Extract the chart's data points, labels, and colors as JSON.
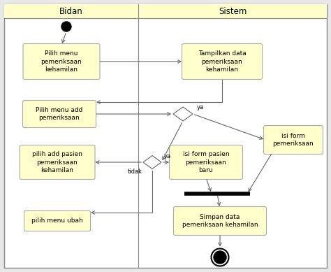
{
  "bg_color": "#f5f5f5",
  "header_bg": "#ffffcc",
  "box_bg": "#ffffcc",
  "box_edge": "#aaaaaa",
  "arrow_color": "#666666",
  "text_color": "#000000",
  "header_bidan": "Bidan",
  "header_sistem": "Sistem",
  "box1_text": "Pilih menu\npemeriksaan\nkehamilan",
  "box2_text": "Tampilkan data\npemeriksaan\nkehamilan",
  "box3_text": "Pilih menu add\npemeriksaan",
  "box4_text": "pilih add pasien\npemeriksaan\nkehamilan",
  "box5_text": "isi form pasien\npemeriksaan\nbaru",
  "box6_text": "isi form\npemeriksaan",
  "box7_text": "Simpan data\npemeriksaan kehamilan",
  "box8_text": "pilih menu ubah",
  "label_ya1": "ya",
  "label_ya2": "ya",
  "label_tidak": "tidak",
  "fontsize": 6.5,
  "header_fontsize": 8.5,
  "fig_w": 4.74,
  "fig_h": 3.89,
  "dpi": 100
}
